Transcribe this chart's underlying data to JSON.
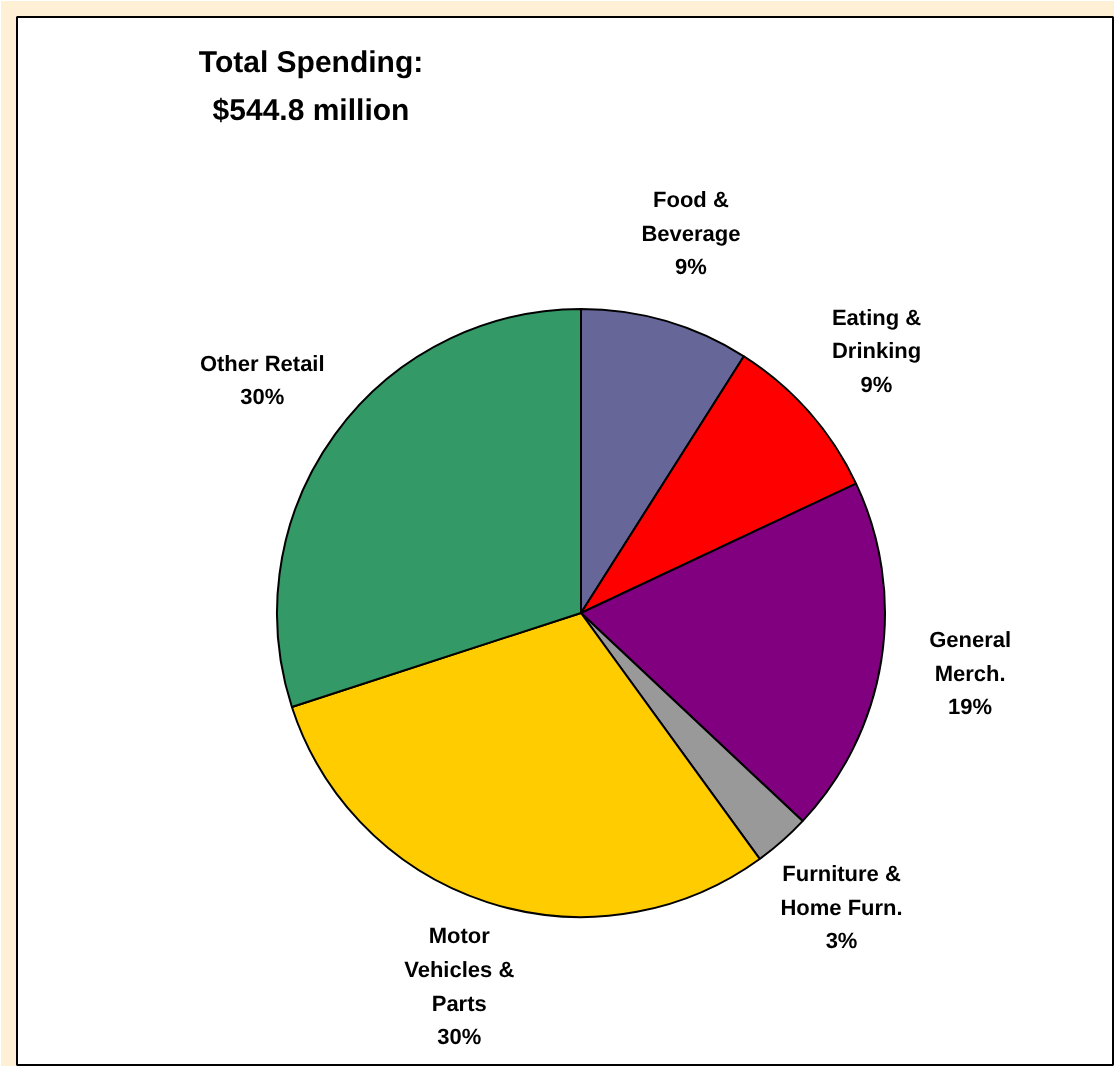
{
  "chart_data": {
    "type": "pie",
    "title": "Total Spending:\n$544.8 million",
    "categories": [
      "Food &\nBeverage",
      "Eating &\nDrinking",
      "General\nMerch.",
      "Furniture &\nHome Furn.",
      "Motor\nVehicles &\nParts",
      "Other Retail"
    ],
    "values": [
      9,
      9,
      19,
      3,
      30,
      30
    ],
    "colors": [
      "#666699",
      "#ff0000",
      "#800080",
      "#999999",
      "#ffcc00",
      "#339966"
    ],
    "value_labels": [
      "9%",
      "9%",
      "19%",
      "3%",
      "30%",
      "30%"
    ]
  }
}
